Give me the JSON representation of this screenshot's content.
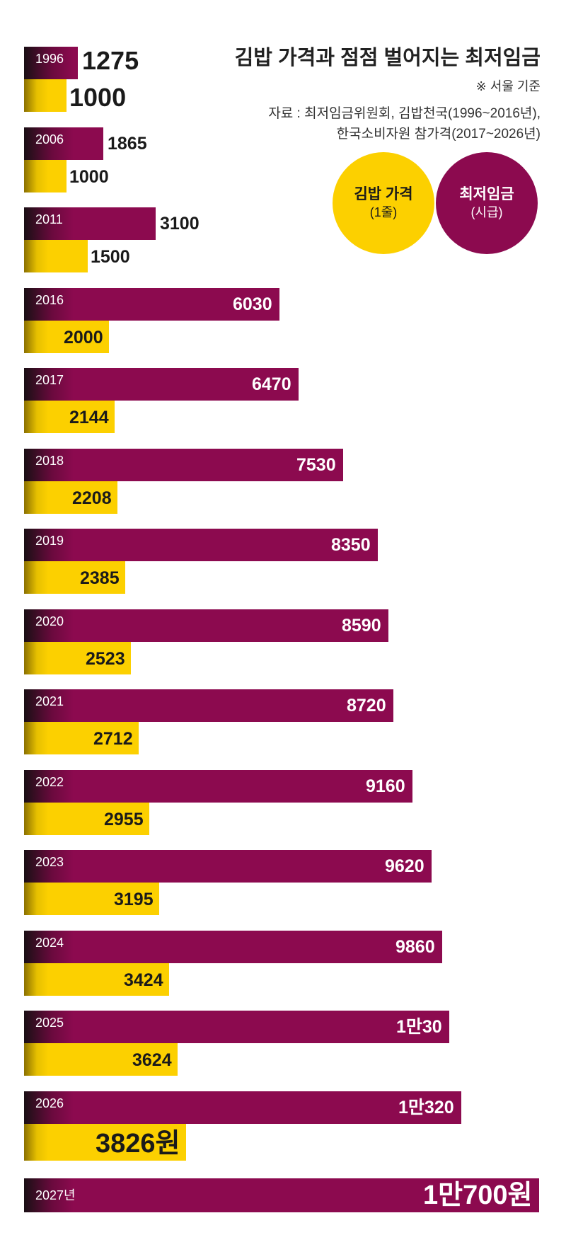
{
  "header": {
    "title": "김밥 가격과 점점 벌어지는 최저임금",
    "note": "※ 서울 기준",
    "source_line1": "자료 : 최저임금위원회, 김밥천국(1996~2016년),",
    "source_line2": "한국소비자원 참가격(2017~2026년)"
  },
  "legend": {
    "kimbap": {
      "name": "김밥 가격",
      "unit": "(1줄)",
      "color": "#fcd000"
    },
    "wage": {
      "name": "최저임금",
      "unit": "(시급)",
      "color": "#8c0a4f"
    }
  },
  "chart_data": {
    "type": "bar",
    "orientation": "horizontal",
    "title": "김밥 가격과 점점 벌어지는 최저임금",
    "categories": [
      "1996",
      "2006",
      "2011",
      "2016",
      "2017",
      "2018",
      "2019",
      "2020",
      "2021",
      "2022",
      "2023",
      "2024",
      "2025",
      "2026",
      "2027년"
    ],
    "series": [
      {
        "name": "최저임금",
        "color": "#8c0a4f",
        "values": [
          1275,
          1865,
          3100,
          6030,
          6470,
          7530,
          8350,
          8590,
          8720,
          9160,
          9620,
          9860,
          10030,
          10320,
          10700
        ],
        "labels": [
          "1275",
          "1865",
          "3100",
          "6030",
          "6470",
          "7530",
          "8350",
          "8590",
          "8720",
          "9160",
          "9620",
          "9860",
          "1만30",
          "1만320",
          "1만700원"
        ]
      },
      {
        "name": "김밥 가격",
        "color": "#fcd000",
        "values": [
          1000,
          1000,
          1500,
          2000,
          2144,
          2208,
          2385,
          2523,
          2712,
          2955,
          3195,
          3424,
          3624,
          3826,
          null
        ],
        "labels": [
          "1000",
          "1000",
          "1500",
          "2000",
          "2144",
          "2208",
          "2385",
          "2523",
          "2712",
          "2955",
          "3195",
          "3424",
          "3624",
          "3826원",
          null
        ]
      }
    ]
  }
}
